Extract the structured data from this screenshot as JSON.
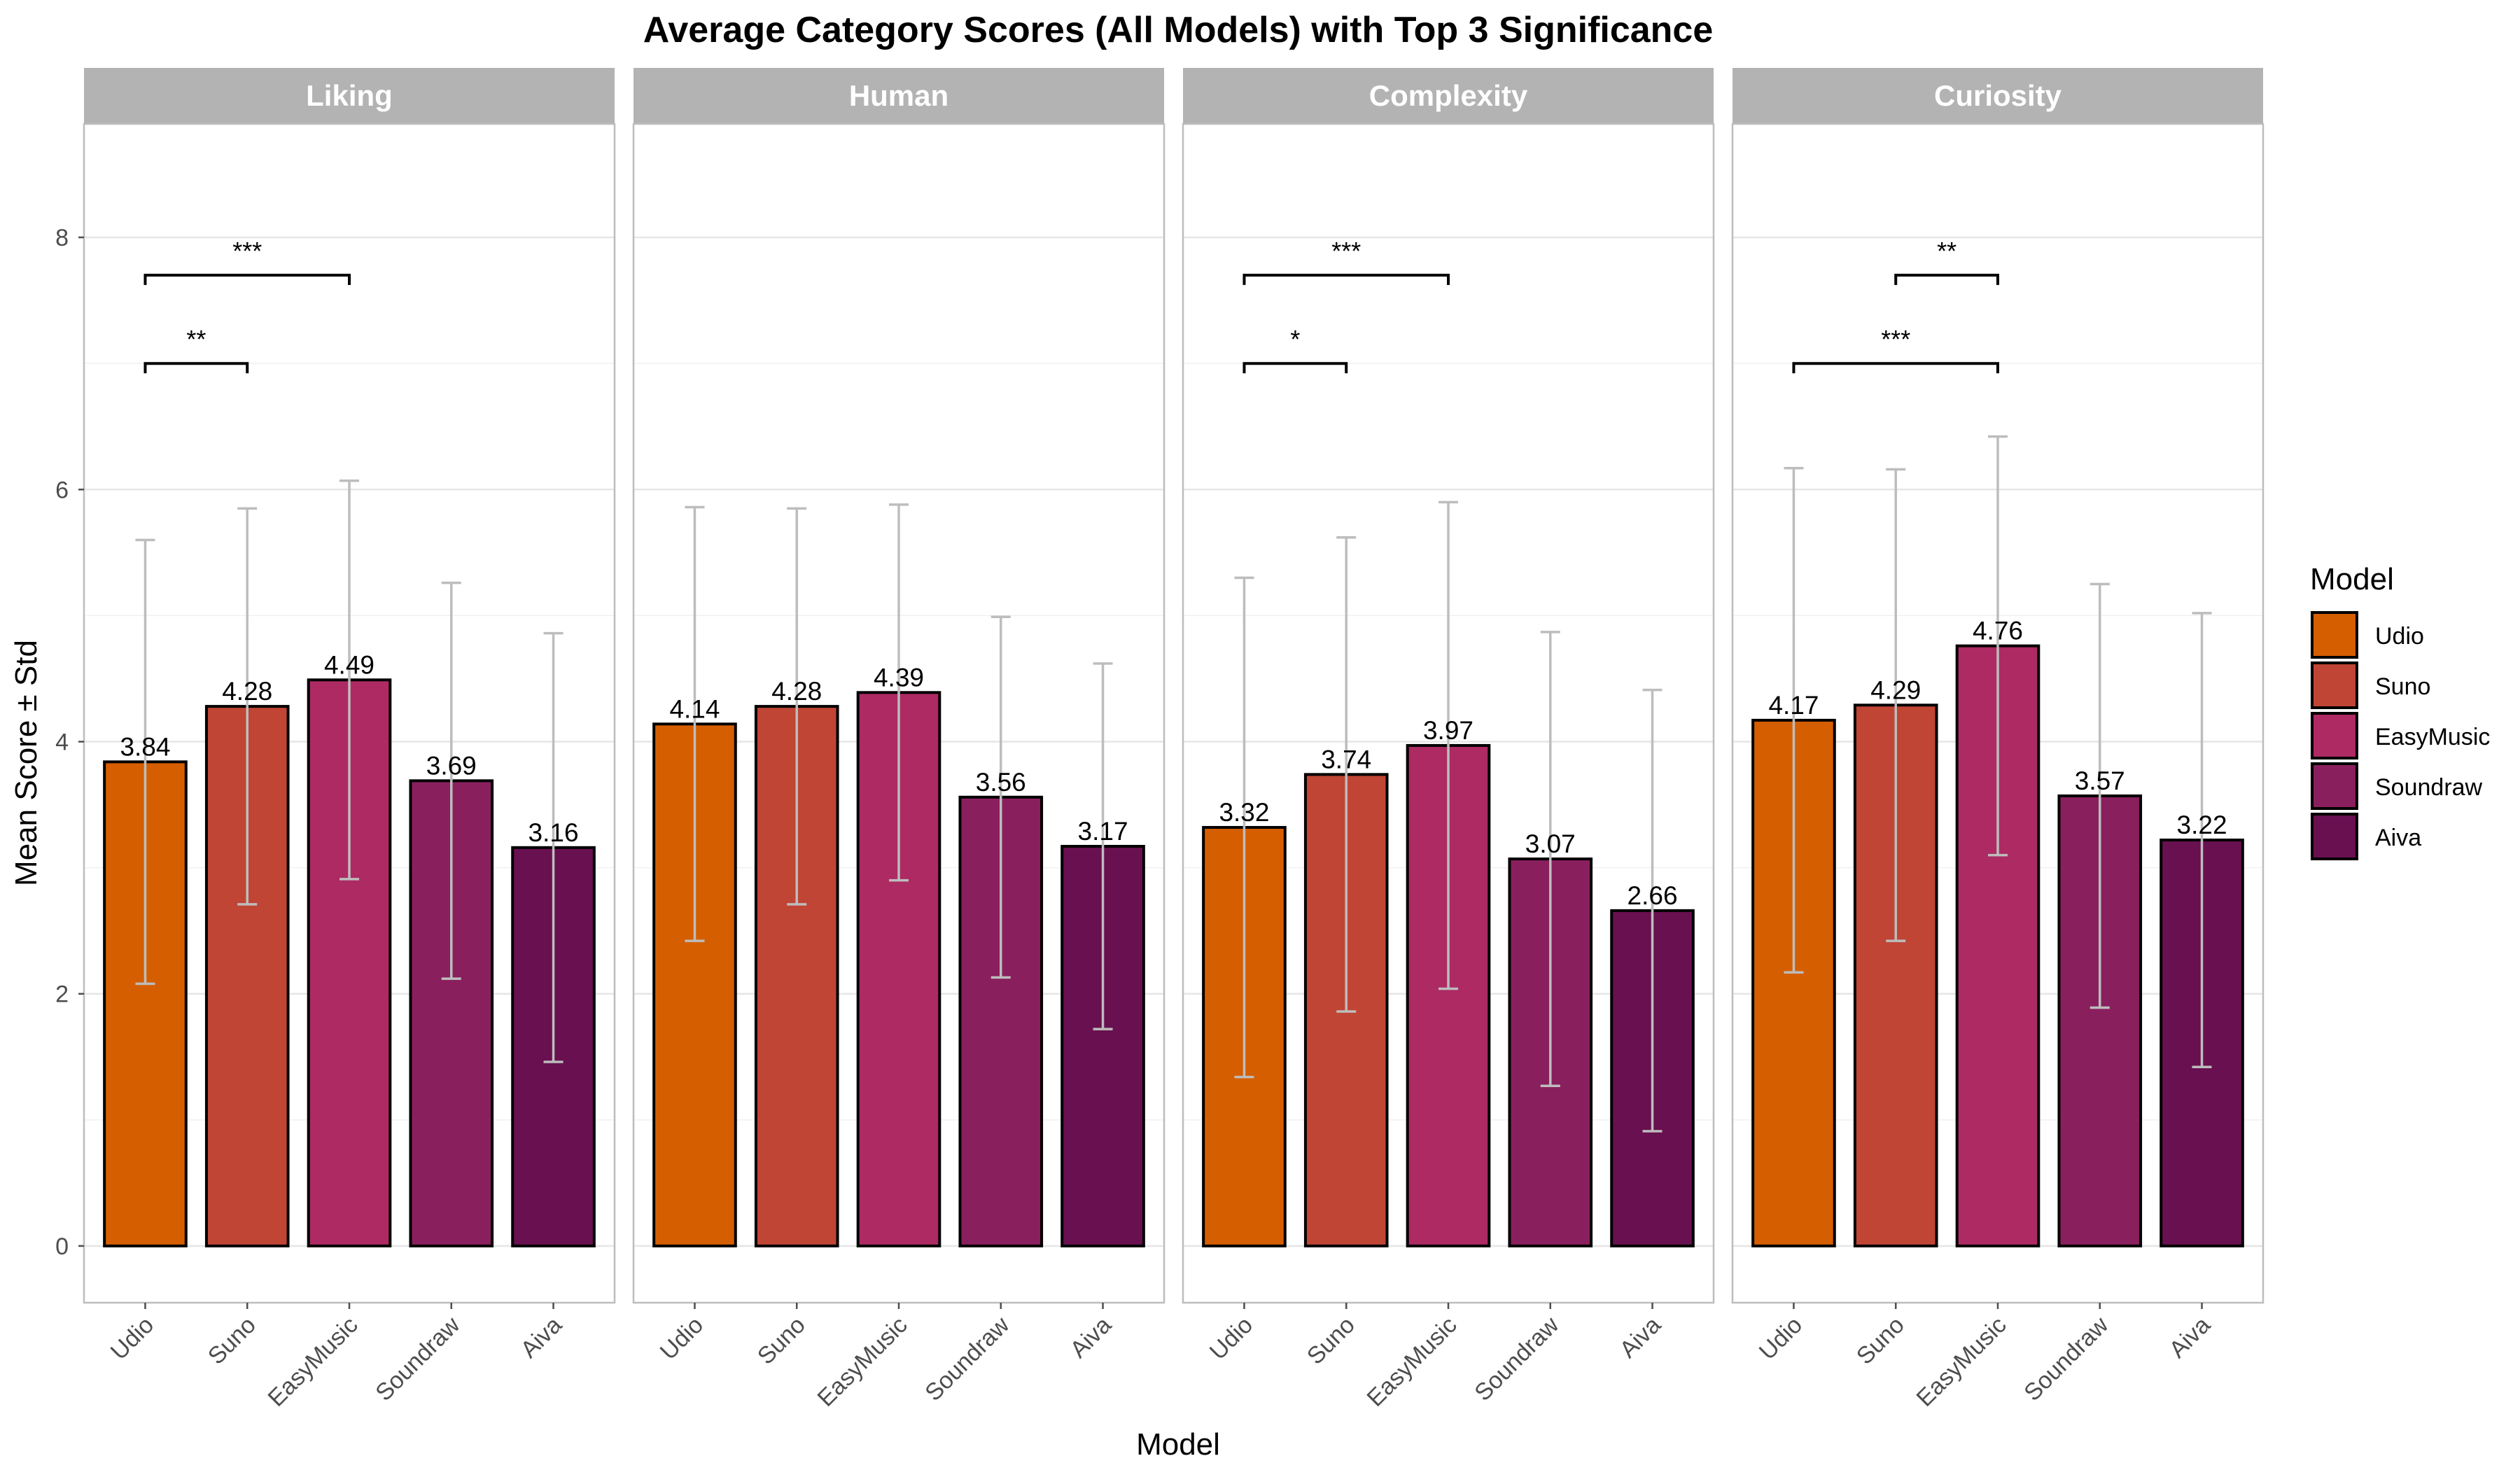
{
  "chart_data": {
    "type": "bar",
    "title": "Average Category Scores (All Models) with Top 3 Significance",
    "xlabel": "Model",
    "ylabel": "Mean Score ± Std",
    "ylim": [
      -0.45,
      8.9
    ],
    "yticks": [
      0,
      2,
      4,
      6,
      8
    ],
    "grid": true,
    "legend_position": "right",
    "legend_title": "Model",
    "categories": [
      "Udio",
      "Suno",
      "EasyMusic",
      "Soundraw",
      "Aiva"
    ],
    "colors": [
      "#D55E00",
      "#C04535",
      "#AD2A63",
      "#8A1F5E",
      "#691050"
    ],
    "panels": [
      {
        "name": "Liking",
        "values": [
          3.84,
          4.28,
          4.49,
          3.69,
          3.16
        ],
        "std": [
          1.76,
          1.57,
          1.58,
          1.57,
          1.7
        ],
        "significance": [
          {
            "from": "Udio",
            "to": "EasyMusic",
            "y": 7.7,
            "label": "***"
          },
          {
            "from": "Udio",
            "to": "Suno",
            "y": 7.0,
            "label": "**"
          }
        ]
      },
      {
        "name": "Human",
        "values": [
          4.14,
          4.28,
          4.39,
          3.56,
          3.17
        ],
        "std": [
          1.72,
          1.57,
          1.49,
          1.43,
          1.45
        ],
        "significance": []
      },
      {
        "name": "Complexity",
        "values": [
          3.32,
          3.74,
          3.97,
          3.07,
          2.66
        ],
        "std": [
          1.98,
          1.88,
          1.93,
          1.8,
          1.75
        ],
        "significance": [
          {
            "from": "Udio",
            "to": "EasyMusic",
            "y": 7.7,
            "label": "***"
          },
          {
            "from": "Udio",
            "to": "Suno",
            "y": 7.0,
            "label": "*"
          }
        ]
      },
      {
        "name": "Curiosity",
        "values": [
          4.17,
          4.29,
          4.76,
          3.57,
          3.22
        ],
        "std": [
          2.0,
          1.87,
          1.66,
          1.68,
          1.8
        ],
        "significance": [
          {
            "from": "Suno",
            "to": "EasyMusic",
            "y": 7.7,
            "label": "**"
          },
          {
            "from": "Udio",
            "to": "EasyMusic",
            "y": 7.0,
            "label": "***"
          }
        ]
      }
    ]
  }
}
